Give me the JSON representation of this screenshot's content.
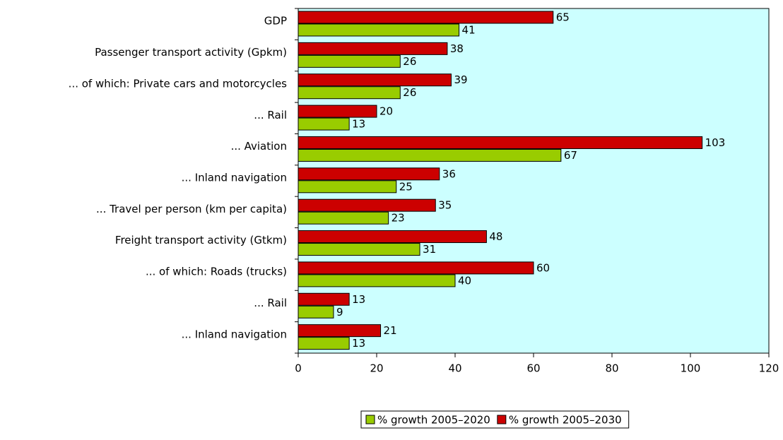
{
  "chart_data": {
    "type": "bar",
    "orientation": "horizontal",
    "categories": [
      "GDP",
      "Passenger transport activity (Gpkm)",
      "... of which: Private cars and motorcycles",
      "... Rail",
      "... Aviation",
      "... Inland navigation",
      "... Travel per person (km per capita)",
      "Freight transport activity (Gtkm)",
      "... of which: Roads (trucks)",
      "... Rail",
      "... Inland navigation"
    ],
    "series": [
      {
        "name": "% growth 2005–2020",
        "color": "#99cc00",
        "values": [
          41,
          26,
          26,
          13,
          67,
          25,
          23,
          31,
          40,
          9,
          13
        ]
      },
      {
        "name": "% growth 2005–2030",
        "color": "#cc0000",
        "values": [
          65,
          38,
          39,
          20,
          103,
          36,
          35,
          48,
          60,
          13,
          21
        ]
      }
    ],
    "xlim": [
      0,
      120
    ],
    "xticks": [
      0,
      20,
      40,
      60,
      80,
      100,
      120
    ],
    "plot_background": "#ccffff",
    "legend": "bottom"
  }
}
